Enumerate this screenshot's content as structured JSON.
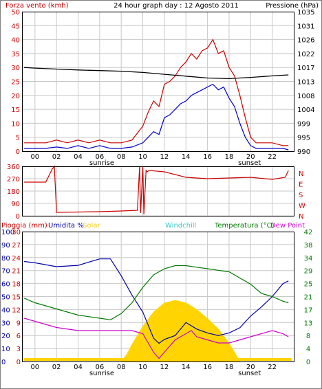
{
  "header": {
    "wind_title": "Forza vento (kmh)",
    "day_title": "24 hour graph day : 12 Agosto 2011",
    "pressure_title": "Pressione (hPa)"
  },
  "colors": {
    "wind_gust": "#cc0000",
    "wind_avg": "#0000cc",
    "pressure": "#000000",
    "direction": "#cc0000",
    "humidity": "#0000aa",
    "solar": "#ffd400",
    "temperature": "#007700",
    "dew_point": "#cc00cc",
    "windchill": "#33cccc",
    "grid": "#c8c8c8"
  },
  "common": {
    "hour_labels": [
      "00",
      "02",
      "04",
      "06",
      "08",
      "10",
      "12",
      "14",
      "16",
      "18",
      "20",
      "22"
    ],
    "sunrise_label": "sunrise",
    "sunset_label": "sunset",
    "sunrise_hour": 6.2,
    "sunset_hour": 19.9
  },
  "chart_data": [
    {
      "type": "line",
      "name": "wind_pressure",
      "x_range": [
        -1.2,
        24
      ],
      "ylim": [
        0,
        50
      ],
      "y_ticks": [
        0,
        5,
        10,
        15,
        20,
        25,
        30,
        35,
        40,
        45,
        50
      ],
      "y2lim": [
        990,
        1035
      ],
      "y2_ticks": [
        990,
        995,
        999,
        1004,
        1008,
        1013,
        1017,
        1022,
        1026,
        1031,
        1035
      ],
      "series": [
        {
          "key": "gust",
          "x": [
            -1,
            0,
            1,
            2,
            3,
            4,
            5,
            6,
            7,
            8,
            9,
            10,
            10.5,
            11,
            11.5,
            12,
            12.5,
            13,
            13.5,
            14,
            14.5,
            15,
            15.5,
            16,
            16.5,
            17,
            17.5,
            18,
            18.5,
            19,
            19.5,
            20,
            20.5,
            21,
            22,
            23,
            23.5
          ],
          "y": [
            3,
            3,
            3,
            4,
            3,
            4,
            3,
            4,
            3,
            3,
            4,
            9,
            14,
            18,
            16,
            24,
            25,
            27,
            30,
            32,
            35,
            33,
            36,
            37,
            40,
            35,
            36,
            30,
            27,
            20,
            12,
            5,
            3,
            3,
            3,
            2,
            2
          ]
        },
        {
          "key": "avg",
          "x": [
            -1,
            0,
            1,
            2,
            3,
            4,
            5,
            6,
            7,
            8,
            9,
            10,
            10.5,
            11,
            11.5,
            12,
            12.5,
            13,
            13.5,
            14,
            14.5,
            15,
            15.5,
            16,
            16.5,
            17,
            17.5,
            18,
            18.5,
            19,
            19.5,
            20,
            20.5,
            21,
            22,
            23,
            23.5
          ],
          "y": [
            1,
            1,
            1,
            1.5,
            1,
            2,
            1,
            2,
            1,
            1,
            1.5,
            3,
            5,
            7,
            6,
            12,
            13,
            15,
            17,
            18,
            20,
            21,
            22,
            23,
            24,
            22,
            23,
            19,
            16,
            10,
            5,
            2,
            1,
            1,
            1,
            1,
            0.5
          ]
        },
        {
          "key": "pressure",
          "x": [
            -1,
            0,
            2,
            4,
            6,
            8,
            10,
            12,
            14,
            16,
            18,
            20,
            22,
            23.5
          ],
          "y": [
            1017,
            1016.8,
            1016.5,
            1016.2,
            1016,
            1015.8,
            1015.4,
            1014.8,
            1014.2,
            1013.6,
            1013.4,
            1013.8,
            1014.3,
            1014.6
          ]
        }
      ]
    },
    {
      "type": "line",
      "name": "wind_direction",
      "x_range": [
        -1.2,
        24
      ],
      "ylim": [
        0,
        360
      ],
      "y_ticks": [
        0,
        90,
        180,
        270,
        360
      ],
      "cardinals": [
        "N",
        "W",
        "S",
        "E",
        "N"
      ],
      "series": [
        {
          "key": "direction",
          "x": [
            -1,
            1,
            1.6,
            1.8,
            2,
            6,
            8,
            9.5,
            9.7,
            9.8,
            10,
            10.1,
            10.3,
            10.4,
            10.6,
            12,
            14,
            16,
            18,
            20,
            22,
            23.2,
            23.5
          ],
          "y": [
            245,
            245,
            340,
            360,
            25,
            30,
            35,
            40,
            360,
            20,
            360,
            10,
            330,
            320,
            330,
            320,
            280,
            270,
            275,
            280,
            265,
            280,
            330
          ]
        }
      ]
    },
    {
      "type": "line",
      "name": "rain_humidity_solar_temperature",
      "x_range": [
        -1.2,
        24
      ],
      "labels": {
        "rain": "Pioggia (mm)",
        "humidity": "Umidita %",
        "solar": "Solar",
        "windchill": "Windchill",
        "temperature": "Temperatura (°C)",
        "dew_point": "Dew Point"
      },
      "rain_ticks": [
        0,
        3,
        6,
        9,
        12,
        15,
        18,
        21,
        24,
        27,
        30
      ],
      "humidity_ticks": [
        0,
        10,
        20,
        30,
        40,
        50,
        60,
        70,
        80,
        90,
        100
      ],
      "temp_ticks": [
        0,
        4,
        8,
        13,
        17,
        21,
        25,
        29,
        34,
        38,
        42
      ],
      "temp_range": [
        0,
        42
      ],
      "series": [
        {
          "key": "humidity",
          "x": [
            -1,
            0,
            2,
            4,
            6,
            7,
            8,
            9,
            10,
            11,
            11.5,
            12,
            13,
            14,
            15,
            16,
            17,
            18,
            19,
            20,
            21,
            22,
            23,
            23.5
          ],
          "y": [
            77,
            76,
            73,
            74,
            79,
            79,
            66,
            51,
            38,
            18,
            14,
            17,
            20,
            30,
            25,
            22,
            20,
            22,
            26,
            35,
            42,
            50,
            60,
            62
          ]
        },
        {
          "key": "temperature",
          "x": [
            -1,
            0,
            2,
            4,
            6,
            7,
            8,
            9,
            10,
            11,
            12,
            13,
            14,
            15,
            16,
            17,
            18,
            19,
            20,
            21,
            22,
            23,
            23.5
          ],
          "y": [
            20.5,
            19,
            17,
            15,
            14,
            13.5,
            15.5,
            19,
            24,
            28,
            30,
            31,
            31,
            30.5,
            30,
            29.5,
            29,
            27,
            25,
            22,
            21,
            19.5,
            19
          ]
        },
        {
          "key": "dew_point",
          "x": [
            -1,
            0,
            2,
            4,
            6,
            8,
            9,
            10,
            10.5,
            11,
            11.5,
            12,
            13,
            14,
            14.5,
            15,
            16,
            17,
            18,
            19,
            20,
            21,
            22,
            23,
            23.5
          ],
          "y": [
            14,
            13,
            11,
            10,
            10,
            10,
            10,
            9,
            6,
            3,
            1,
            3,
            7,
            9,
            10,
            8,
            7,
            6,
            6,
            7,
            8,
            9,
            10,
            9,
            8
          ]
        },
        {
          "key": "solar",
          "x": [
            8,
            8.5,
            9,
            10,
            11,
            12,
            13,
            14,
            15,
            16,
            17,
            18,
            18.5,
            19
          ],
          "y": [
            0,
            5,
            13,
            27,
            38,
            45,
            47,
            45,
            40,
            33,
            25,
            14,
            7,
            0
          ]
        }
      ]
    }
  ]
}
